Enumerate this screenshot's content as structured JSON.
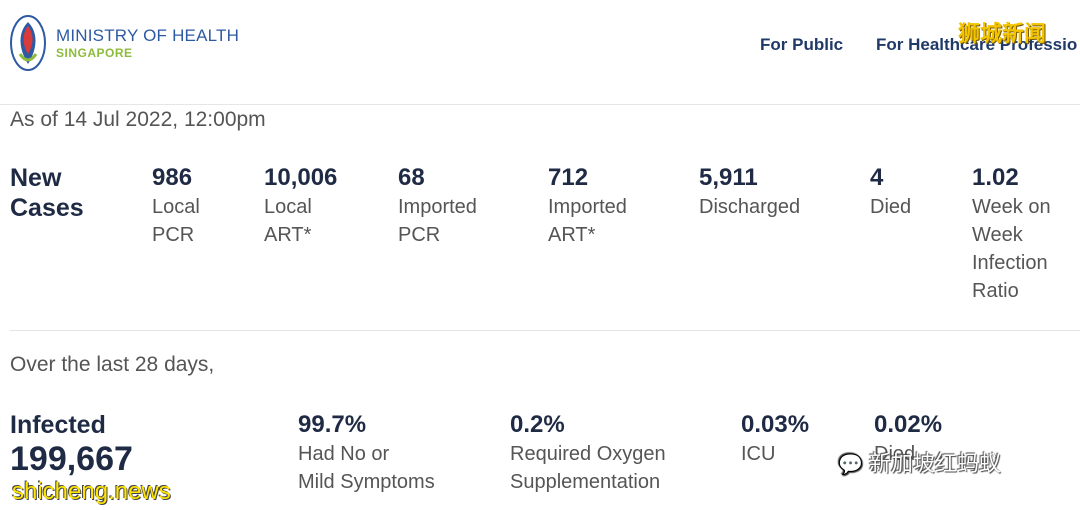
{
  "header": {
    "brand_name": "MINISTRY OF HEALTH",
    "brand_sub": "SINGAPORE",
    "nav": [
      "For Public",
      "For Healthcare Professio"
    ],
    "watermark": "狮城新闻"
  },
  "as_of": "As of 14 Jul 2022, 12:00pm",
  "new_cases": {
    "label_line1": "New",
    "label_line2": "Cases",
    "stats": [
      {
        "value": "986",
        "label": "Local\nPCR"
      },
      {
        "value": "10,006",
        "label": "Local\nART*"
      },
      {
        "value": "68",
        "label": "Imported\nPCR"
      },
      {
        "value": "712",
        "label": "Imported\nART*"
      },
      {
        "value": "5,911",
        "label": "Discharged"
      },
      {
        "value": "4",
        "label": "Died"
      },
      {
        "value": "1.02",
        "label": "Week on\nWeek\nInfection\nRatio"
      }
    ]
  },
  "last_28": {
    "heading": "Over the last 28 days,",
    "infected_label": "Infected",
    "infected_value": "199,667",
    "stats": [
      {
        "value": "99.7%",
        "label": "Had No or\nMild Symptoms"
      },
      {
        "value": "0.2%",
        "label": "Required Oxygen\nSupplementation"
      },
      {
        "value": "0.03%",
        "label": "ICU"
      },
      {
        "value": "0.02%",
        "label": "Died"
      }
    ]
  },
  "watermarks": {
    "site": "shicheng.news",
    "wechat": "新加坡红蚂蚁"
  },
  "colors": {
    "brand_blue": "#2d5aa3",
    "brand_green": "#8dbb3b",
    "nav_text": "#1f3a67",
    "watermark_yellow": "#f2c400"
  }
}
